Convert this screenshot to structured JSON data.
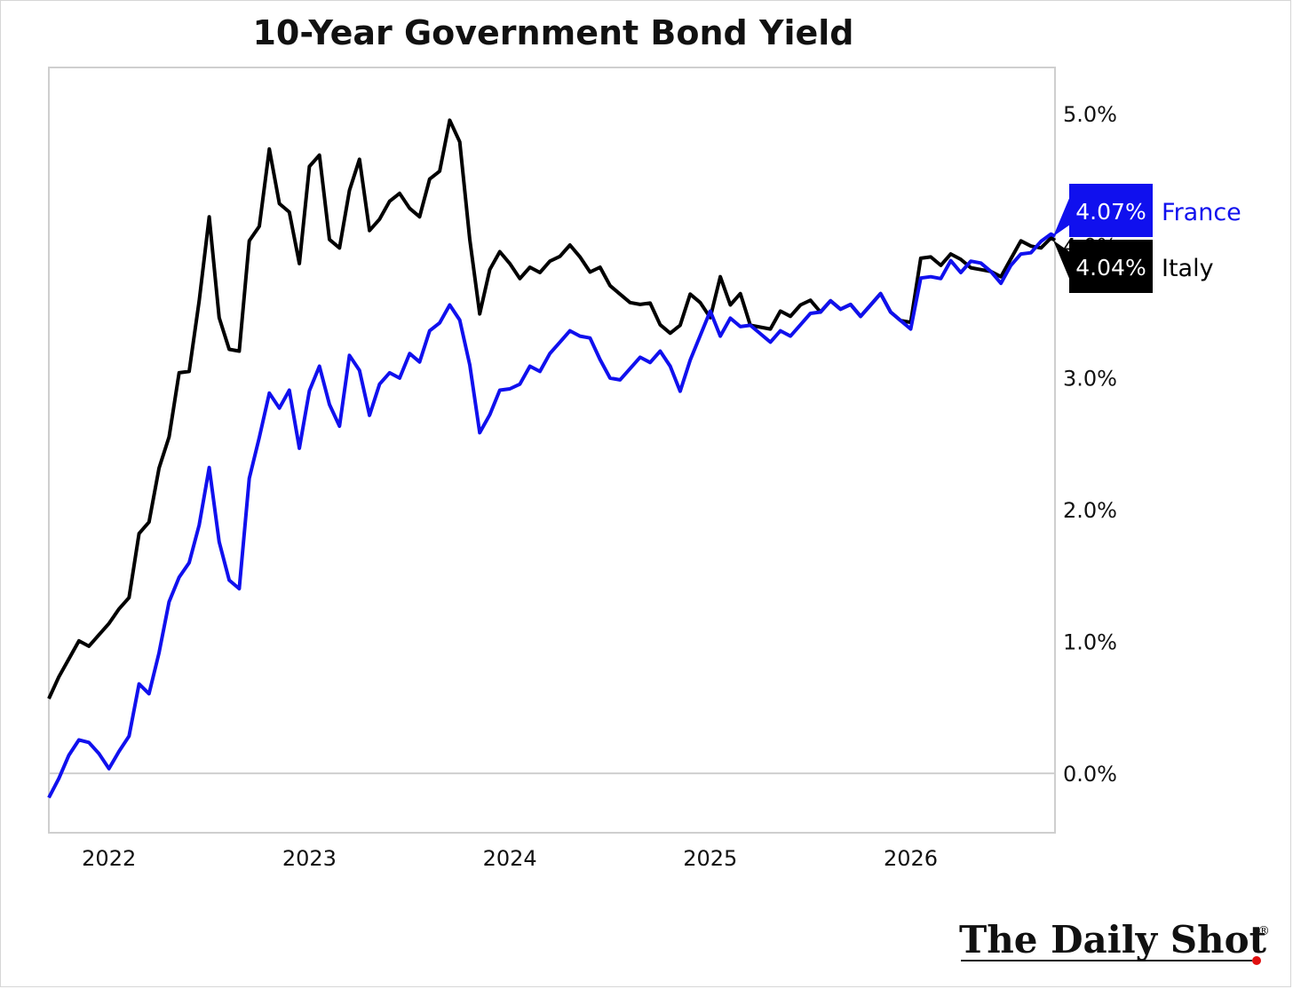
{
  "chart_data": {
    "type": "line",
    "title": "10-Year Government Bond Yield",
    "xlabel": "",
    "ylabel": "",
    "x_ticks": [
      "2022",
      "2023",
      "2024",
      "2025",
      "2026"
    ],
    "y_ticks": [
      "0.0%",
      "1.0%",
      "2.0%",
      "3.0%",
      "4.0%",
      "5.0%"
    ],
    "ylim": [
      -0.45,
      5.35
    ],
    "xlim": [
      2021.7,
      2026.72
    ],
    "grid": false,
    "zero_line": true,
    "series": [
      {
        "name": "France",
        "color": "#1010ee",
        "last_label": "4.07%",
        "x": [
          2021.7,
          2021.75,
          2021.8,
          2021.85,
          2021.9,
          2021.95,
          2022.0,
          2022.05,
          2022.1,
          2022.15,
          2022.2,
          2022.25,
          2022.3,
          2022.35,
          2022.4,
          2022.45,
          2022.5,
          2022.55,
          2022.6,
          2022.65,
          2022.7,
          2022.75,
          2022.8,
          2022.85,
          2022.9,
          2022.95,
          2023.0,
          2023.05,
          2023.1,
          2023.15,
          2023.2,
          2023.25,
          2023.3,
          2023.35,
          2023.4,
          2023.45,
          2023.5,
          2023.55,
          2023.6,
          2023.65,
          2023.7,
          2023.75,
          2023.8,
          2023.85,
          2023.9,
          2023.95,
          2024.0,
          2024.05,
          2024.1,
          2024.15,
          2024.2,
          2024.25,
          2024.3,
          2024.35,
          2024.4,
          2024.45,
          2024.5,
          2024.55,
          2024.6,
          2024.65,
          2024.7,
          2024.75,
          2024.8,
          2024.85,
          2024.9,
          2024.95,
          2025.0,
          2025.05,
          2025.1,
          2025.15,
          2025.2,
          2025.25,
          2025.3,
          2025.35,
          2025.4,
          2025.45,
          2025.5,
          2025.55,
          2025.6,
          2025.65,
          2025.7,
          2025.75,
          2025.8,
          2025.85,
          2025.9,
          2025.95,
          2026.0,
          2026.05,
          2026.1,
          2026.15,
          2026.2,
          2026.25,
          2026.3,
          2026.35,
          2026.4,
          2026.45,
          2026.5,
          2026.55,
          2026.6,
          2026.65,
          2026.7,
          2026.72
        ],
        "y": [
          -0.13,
          -0.02,
          0.12,
          0.2,
          0.27,
          0.15,
          0.0,
          0.22,
          0.3,
          0.66,
          0.55,
          0.95,
          1.3,
          1.45,
          1.65,
          1.9,
          2.3,
          1.7,
          1.5,
          1.4,
          2.2,
          2.6,
          2.9,
          2.75,
          2.85,
          2.5,
          2.9,
          3.05,
          2.85,
          2.65,
          3.15,
          3.0,
          2.75,
          2.95,
          3.0,
          3.05,
          3.2,
          3.1,
          3.3,
          3.45,
          3.55,
          3.4,
          3.15,
          2.6,
          2.7,
          2.85,
          2.95,
          2.95,
          3.05,
          3.1,
          3.2,
          3.25,
          3.3,
          3.35,
          3.3,
          3.1,
          3.05,
          3.0,
          3.05,
          3.1,
          3.15,
          3.2,
          3.05,
          2.95,
          3.15,
          3.3,
          3.45,
          3.35,
          3.45,
          3.35,
          3.45,
          3.35,
          3.25,
          3.3,
          3.35,
          3.4,
          3.45,
          3.55,
          3.6,
          3.5,
          3.5,
          3.5,
          3.55,
          3.6,
          3.55,
          3.45,
          3.35,
          3.7,
          3.8,
          3.75,
          3.85,
          3.85,
          3.9,
          3.85,
          3.75,
          3.75,
          3.85,
          3.9,
          4.0,
          4.05,
          4.07,
          4.07
        ]
      },
      {
        "name": "Italy",
        "color": "#000000",
        "last_label": "4.04%",
        "x": [
          2021.7,
          2021.75,
          2021.8,
          2021.85,
          2021.9,
          2021.95,
          2022.0,
          2022.05,
          2022.1,
          2022.15,
          2022.2,
          2022.25,
          2022.3,
          2022.35,
          2022.4,
          2022.45,
          2022.5,
          2022.55,
          2022.6,
          2022.65,
          2022.7,
          2022.75,
          2022.8,
          2022.85,
          2022.9,
          2022.95,
          2023.0,
          2023.05,
          2023.1,
          2023.15,
          2023.2,
          2023.25,
          2023.3,
          2023.35,
          2023.4,
          2023.45,
          2023.5,
          2023.55,
          2023.6,
          2023.65,
          2023.7,
          2023.75,
          2023.8,
          2023.85,
          2023.9,
          2023.95,
          2024.0,
          2024.05,
          2024.1,
          2024.15,
          2024.2,
          2024.25,
          2024.3,
          2024.35,
          2024.4,
          2024.45,
          2024.5,
          2024.55,
          2024.6,
          2024.65,
          2024.7,
          2024.75,
          2024.8,
          2024.85,
          2024.9,
          2024.95,
          2025.0,
          2025.05,
          2025.1,
          2025.15,
          2025.2,
          2025.25,
          2025.3,
          2025.35,
          2025.4,
          2025.45,
          2025.5,
          2025.55,
          2025.6,
          2025.65,
          2025.7,
          2025.75,
          2025.8,
          2025.85,
          2025.9,
          2025.95,
          2026.0,
          2026.05,
          2026.1,
          2026.15,
          2026.2,
          2026.25,
          2026.3,
          2026.35,
          2026.4,
          2026.45,
          2026.5,
          2026.55,
          2026.6,
          2026.65,
          2026.7,
          2026.72
        ],
        "y": [
          0.62,
          0.75,
          0.85,
          0.95,
          1.0,
          1.05,
          1.1,
          1.3,
          1.35,
          1.8,
          1.85,
          2.35,
          2.55,
          3.0,
          3.1,
          3.6,
          4.2,
          3.4,
          3.25,
          3.2,
          4.0,
          4.2,
          4.75,
          4.3,
          4.2,
          3.9,
          4.6,
          4.65,
          4.1,
          4.0,
          4.4,
          4.6,
          4.15,
          4.2,
          4.3,
          4.45,
          4.3,
          4.2,
          4.45,
          4.6,
          4.95,
          4.75,
          4.1,
          3.5,
          3.8,
          3.9,
          3.9,
          3.75,
          3.8,
          3.85,
          3.9,
          3.9,
          3.95,
          3.95,
          3.8,
          3.8,
          3.75,
          3.65,
          3.55,
          3.5,
          3.6,
          3.4,
          3.3,
          3.45,
          3.65,
          3.55,
          3.4,
          3.8,
          3.55,
          3.6,
          3.45,
          3.4,
          3.35,
          3.45,
          3.5,
          3.55,
          3.55,
          3.55,
          3.6,
          3.5,
          3.5,
          3.5,
          3.55,
          3.6,
          3.55,
          3.45,
          3.4,
          3.85,
          3.95,
          3.85,
          3.9,
          3.95,
          3.85,
          3.8,
          3.75,
          3.8,
          3.9,
          4.0,
          4.05,
          4.0,
          4.04,
          4.04
        ]
      }
    ]
  },
  "brand": {
    "text": "The Daily Shot",
    "mark": "®",
    "dot_color": "#e01010"
  }
}
